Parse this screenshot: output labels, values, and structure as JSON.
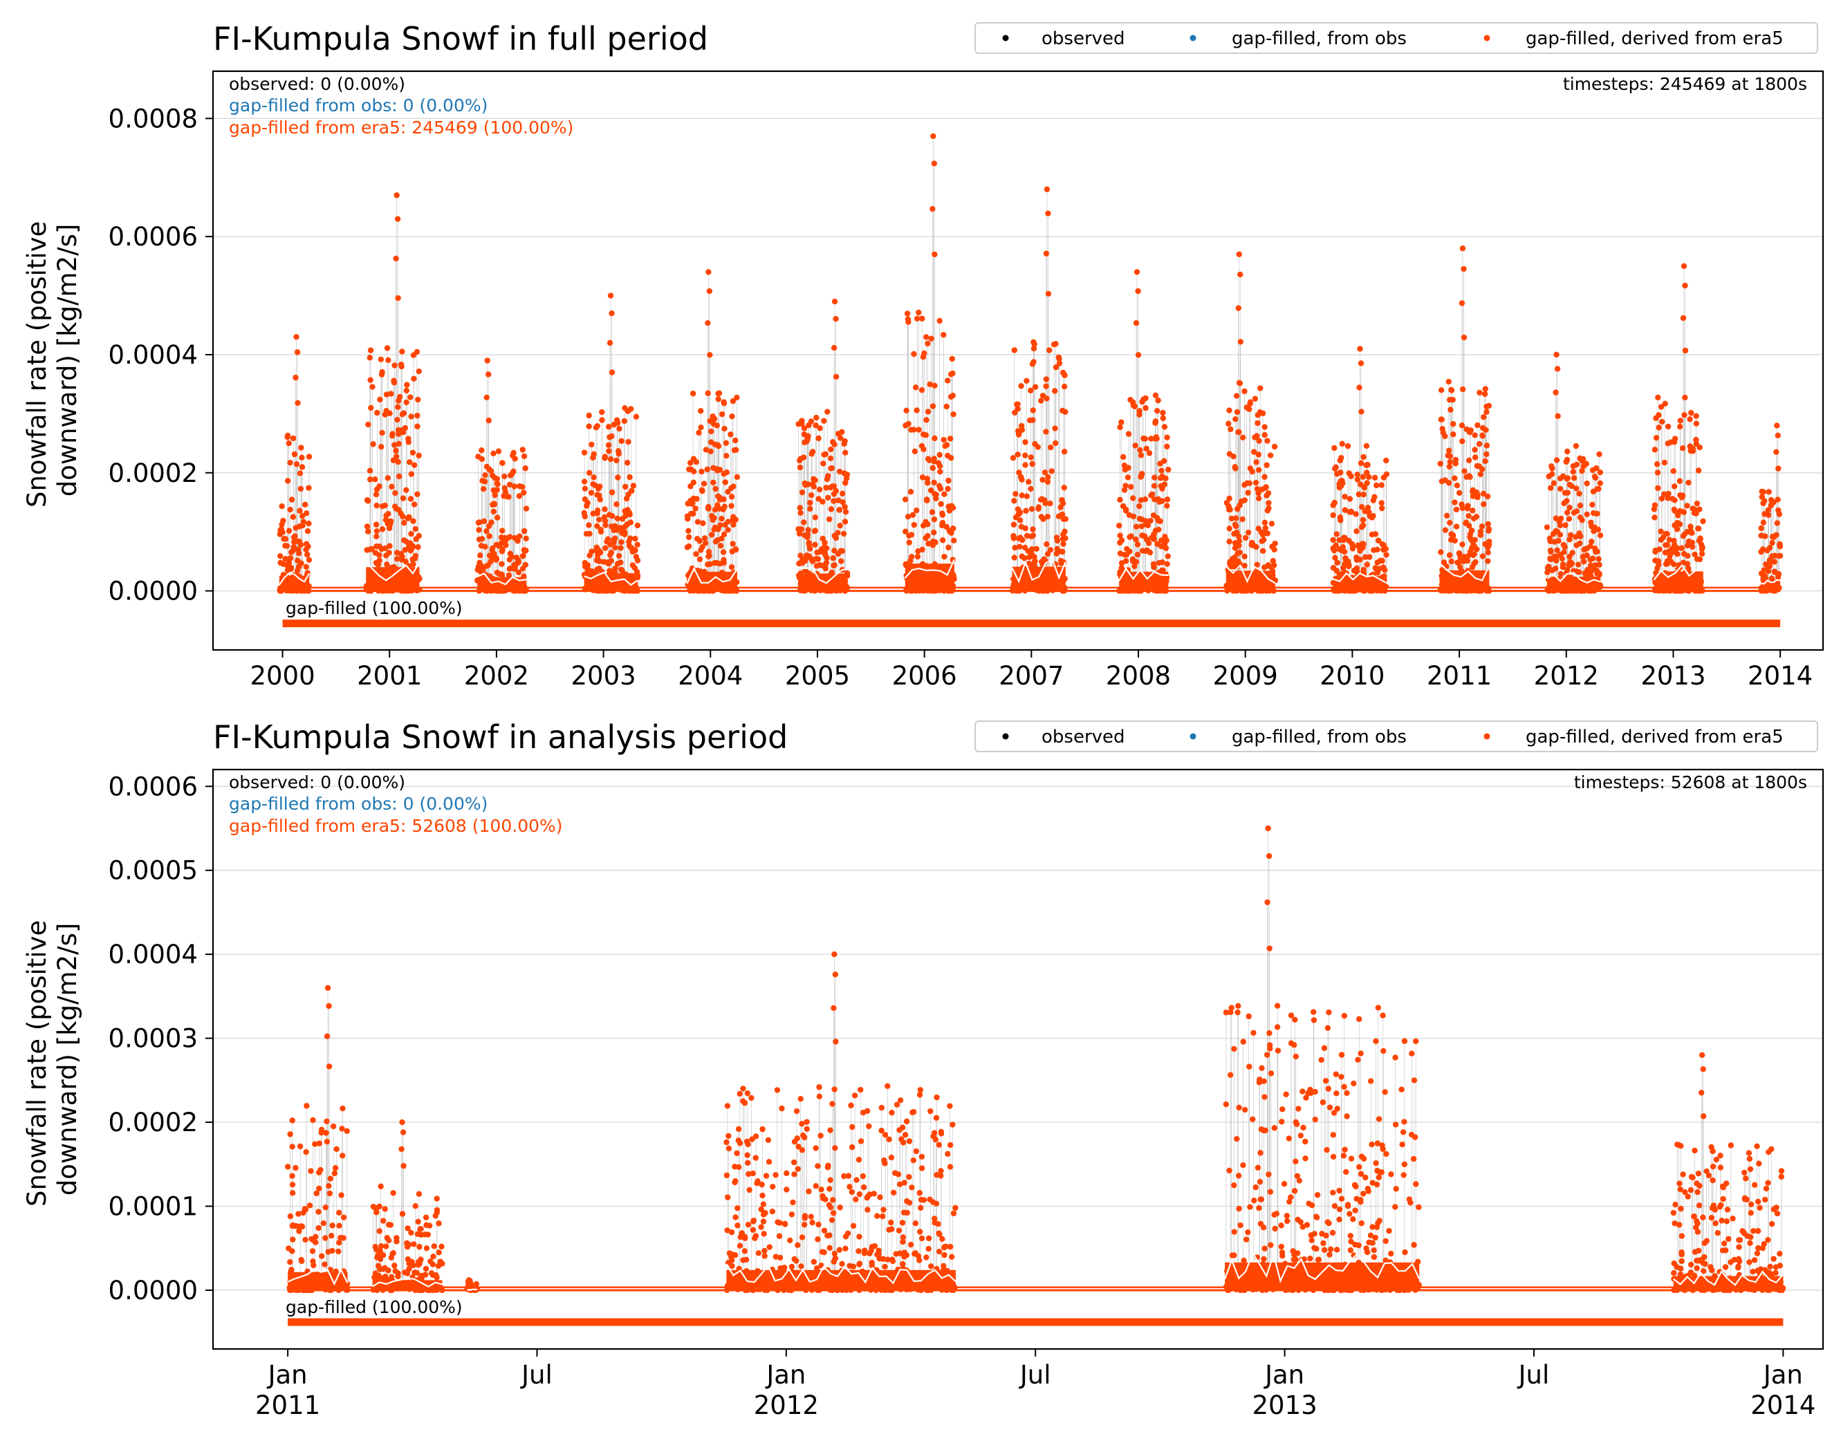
{
  "legend": {
    "observed": "observed",
    "from_obs": "gap-filled, from obs",
    "from_era5": "gap-filled, derived from era5"
  },
  "colors": {
    "observed": "#000000",
    "from_obs": "#1f77b4",
    "from_era5": "#ff4500",
    "mean_line": "#ffffff",
    "thin_line": "#c0c0c0"
  },
  "chart_data": [
    {
      "type": "scatter",
      "title": "FI-Kumpula Snowf in full period",
      "ylabel": "Snowfall rate (positive downward) [kg/m2/s]",
      "ylabel_lines": [
        "Snowfall rate (positive",
        "downward) [kg/m2/s]"
      ],
      "xlim": [
        1999.35,
        2014.4
      ],
      "ylim": [
        -0.0001,
        0.00088
      ],
      "yticks": [
        0.0,
        0.0002,
        0.0004,
        0.0006,
        0.0008
      ],
      "ytick_labels": [
        "0.0000",
        "0.0002",
        "0.0004",
        "0.0006",
        "0.0008"
      ],
      "xticks": [
        2000,
        2001,
        2002,
        2003,
        2004,
        2005,
        2006,
        2007,
        2008,
        2009,
        2010,
        2011,
        2012,
        2013,
        2014
      ],
      "xtick_labels": [
        "2000",
        "2001",
        "2002",
        "2003",
        "2004",
        "2005",
        "2006",
        "2007",
        "2008",
        "2009",
        "2010",
        "2011",
        "2012",
        "2013",
        "2014"
      ],
      "grid": true,
      "legend_placement": "top-right",
      "stats_left": [
        "observed: 0 (0.00%)",
        "gap-filled from obs: 0 (0.00%)",
        "gap-filled from era5: 245469 (100.00%)"
      ],
      "stats_right": "timesteps: 245469 at 1800s",
      "coverage_label": "gap-filled (100.00%)",
      "coverage_range": [
        2000.0,
        2014.0
      ],
      "coverage_level": -5.5e-05,
      "data_range": [
        2000.0,
        2014.0
      ],
      "baseline_offset": 5.5e-06,
      "seasons": [
        {
          "start": 1999.97,
          "end": 2000.25,
          "peak": 0.00043
        },
        {
          "start": 2000.78,
          "end": 2001.28,
          "peak": 0.00067
        },
        {
          "start": 2001.82,
          "end": 2002.28,
          "peak": 0.00039
        },
        {
          "start": 2002.82,
          "end": 2003.32,
          "peak": 0.0005
        },
        {
          "start": 2003.78,
          "end": 2004.25,
          "peak": 0.00054
        },
        {
          "start": 2004.82,
          "end": 2005.28,
          "peak": 0.00049
        },
        {
          "start": 2005.82,
          "end": 2006.28,
          "peak": 0.00077
        },
        {
          "start": 2006.82,
          "end": 2007.32,
          "peak": 0.00068
        },
        {
          "start": 2007.82,
          "end": 2008.28,
          "peak": 0.00054
        },
        {
          "start": 2008.82,
          "end": 2009.28,
          "peak": 0.00057
        },
        {
          "start": 2009.82,
          "end": 2010.32,
          "peak": 0.00041
        },
        {
          "start": 2010.82,
          "end": 2011.28,
          "peak": 0.00058
        },
        {
          "start": 2011.82,
          "end": 2012.32,
          "peak": 0.0004
        },
        {
          "start": 2012.82,
          "end": 2013.28,
          "peak": 0.00055
        },
        {
          "start": 2013.82,
          "end": 2014.0,
          "peak": 0.00028
        }
      ]
    },
    {
      "type": "scatter",
      "title": "FI-Kumpula Snowf in analysis period",
      "ylabel": "Snowfall rate (positive downward) [kg/m2/s]",
      "ylabel_lines": [
        "Snowfall rate (positive",
        "downward) [kg/m2/s]"
      ],
      "xlim": [
        2010.85,
        2014.08
      ],
      "ylim": [
        -7e-05,
        0.00062
      ],
      "yticks": [
        0.0,
        0.0001,
        0.0002,
        0.0003,
        0.0004,
        0.0005,
        0.0006
      ],
      "ytick_labels": [
        "0.0000",
        "0.0001",
        "0.0002",
        "0.0003",
        "0.0004",
        "0.0005",
        "0.0006"
      ],
      "xticks": [
        2011.0,
        2011.5,
        2012.0,
        2012.5,
        2013.0,
        2013.5,
        2014.0
      ],
      "xtick_labels": [
        [
          "Jan",
          "2011"
        ],
        [
          "Jul",
          ""
        ],
        [
          "Jan",
          "2012"
        ],
        [
          "Jul",
          ""
        ],
        [
          "Jan",
          "2013"
        ],
        [
          "Jul",
          ""
        ],
        [
          "Jan",
          "2014"
        ]
      ],
      "grid": true,
      "legend_placement": "top-right",
      "stats_left": [
        "observed: 0 (0.00%)",
        "gap-filled from obs: 0 (0.00%)",
        "gap-filled from era5: 52608 (100.00%)"
      ],
      "stats_right": "timesteps: 52608 at 1800s",
      "coverage_label": "gap-filled (100.00%)",
      "coverage_range": [
        2011.0,
        2014.0
      ],
      "coverage_level": -3.8e-05,
      "data_range": [
        2011.0,
        2014.0
      ],
      "baseline_offset": 3.5e-06,
      "seasons": [
        {
          "start": 2011.0,
          "end": 2011.12,
          "peak": 0.00036
        },
        {
          "start": 2011.17,
          "end": 2011.31,
          "peak": 0.0002
        },
        {
          "start": 2011.36,
          "end": 2011.38,
          "peak": 1.2e-05
        },
        {
          "start": 2011.88,
          "end": 2012.34,
          "peak": 0.0004
        },
        {
          "start": 2012.88,
          "end": 2013.27,
          "peak": 0.00055
        },
        {
          "start": 2013.78,
          "end": 2014.0,
          "peak": 0.00028
        }
      ]
    }
  ]
}
